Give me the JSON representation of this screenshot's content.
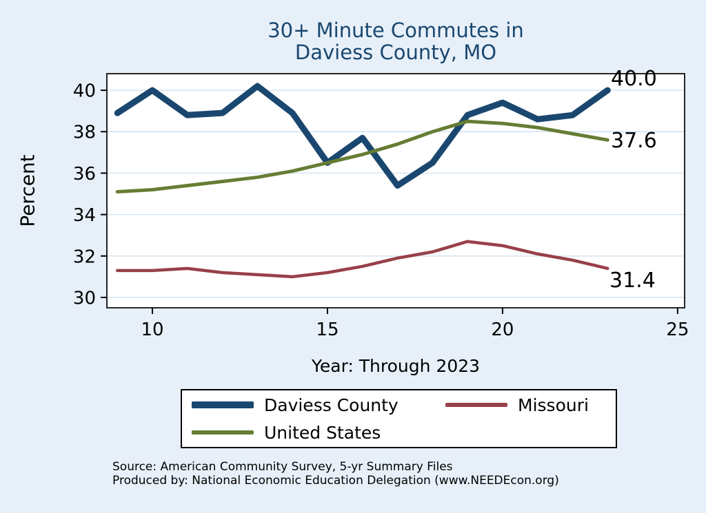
{
  "title": {
    "line1": "30+ Minute Commutes in",
    "line2": "Daviess County, MO"
  },
  "axes": {
    "ylabel": "Percent",
    "xlabel": "Year: Through 2023"
  },
  "end_labels": [
    {
      "series": "Daviess County",
      "value": "40.0"
    },
    {
      "series": "United States",
      "value": "37.6"
    },
    {
      "series": "Missouri",
      "value": "31.4"
    }
  ],
  "source": {
    "line1": "Source: American Community Survey, 5-yr Summary Files",
    "line2": "Produced by: National Economic Education Delegation (www.NEEDEcon.org)"
  },
  "colors": {
    "background": "#e7f0f9",
    "plot_background": "#ffffff",
    "gridline": "#cfe2f3",
    "axis": "#000000",
    "title": "#1a476f"
  },
  "chart_data": {
    "type": "line",
    "title": "30+ Minute Commutes in Daviess County, MO",
    "xlabel": "Year: Through 2023",
    "ylabel": "Percent",
    "x": [
      9,
      10,
      11,
      12,
      13,
      14,
      15,
      16,
      17,
      18,
      19,
      20,
      21,
      22,
      23
    ],
    "series": [
      {
        "name": "Daviess County",
        "color": "#1a476f",
        "line_width": 9,
        "values": [
          38.9,
          40.0,
          38.8,
          38.9,
          40.2,
          38.9,
          36.5,
          37.7,
          35.4,
          36.5,
          38.8,
          39.4,
          38.6,
          38.8,
          40.0
        ]
      },
      {
        "name": "Missouri",
        "color": "#98404a",
        "line_width": 4.5,
        "values": [
          31.3,
          31.3,
          31.4,
          31.2,
          31.1,
          31.0,
          31.2,
          31.5,
          31.9,
          32.2,
          32.7,
          32.5,
          32.1,
          31.8,
          31.4
        ]
      },
      {
        "name": "United States",
        "color": "#667d33",
        "line_width": 5,
        "values": [
          35.1,
          35.2,
          35.4,
          35.6,
          35.8,
          36.1,
          36.5,
          36.9,
          37.4,
          38.0,
          38.5,
          38.4,
          38.2,
          37.9,
          37.6
        ]
      }
    ],
    "xticks": [
      10,
      15,
      20,
      25
    ],
    "yticks": [
      30,
      32,
      34,
      36,
      38,
      40
    ],
    "xlim": [
      8.7,
      25.2
    ],
    "ylim": [
      29.5,
      40.8
    ],
    "grid": "horizontal",
    "legend_position": "bottom"
  }
}
